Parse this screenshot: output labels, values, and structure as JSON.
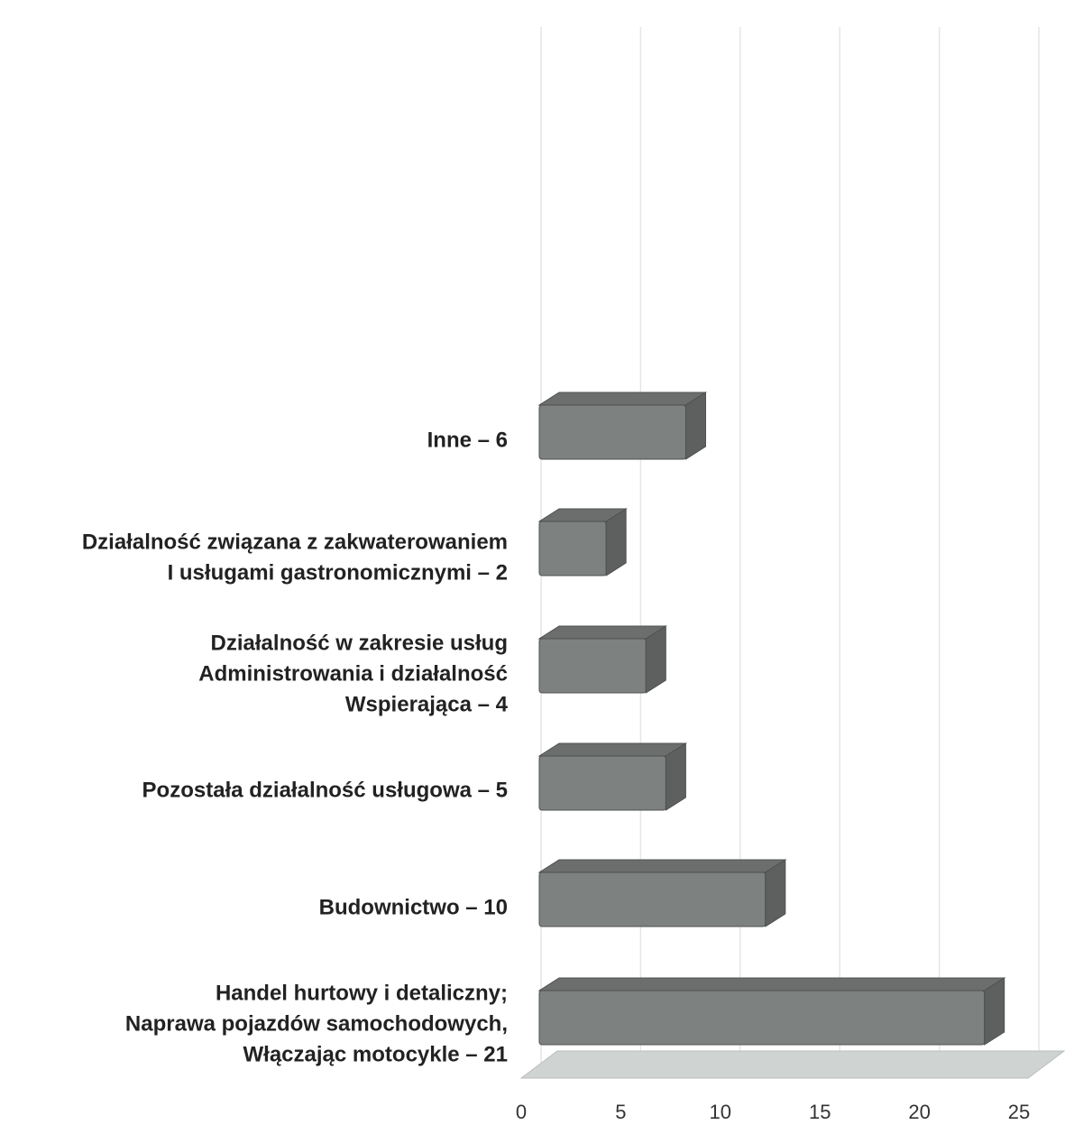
{
  "chart_data": {
    "type": "bar",
    "orientation": "horizontal",
    "style": "3d",
    "categories": [
      [
        "Handel hurtowy i detaliczny;",
        "Naprawa pojazdów samochodowych,",
        "Włączając motocykle – 21"
      ],
      [
        "Budownictwo – 10"
      ],
      [
        "Pozostała działalność usługowa – 5"
      ],
      [
        "Działalność w zakresie usług",
        "Administrowania i działalność",
        "Wspierająca – 4"
      ],
      [
        "Działalność związana z zakwaterowaniem",
        "I usługami gastronomicznymi – 2"
      ],
      [
        "Inne – 6"
      ]
    ],
    "values": [
      21,
      10,
      5,
      4,
      2,
      6
    ],
    "xlim": [
      0,
      25
    ],
    "xticks": [
      "0",
      "5",
      "10",
      "15",
      "20",
      "25"
    ],
    "grid": true,
    "colors": {
      "bar_front": "#7d817f",
      "bar_top": "#6b6e6c",
      "bar_side": "#5e605f",
      "floor": "#cfd3d2",
      "grid": "#e4e6e5"
    }
  }
}
